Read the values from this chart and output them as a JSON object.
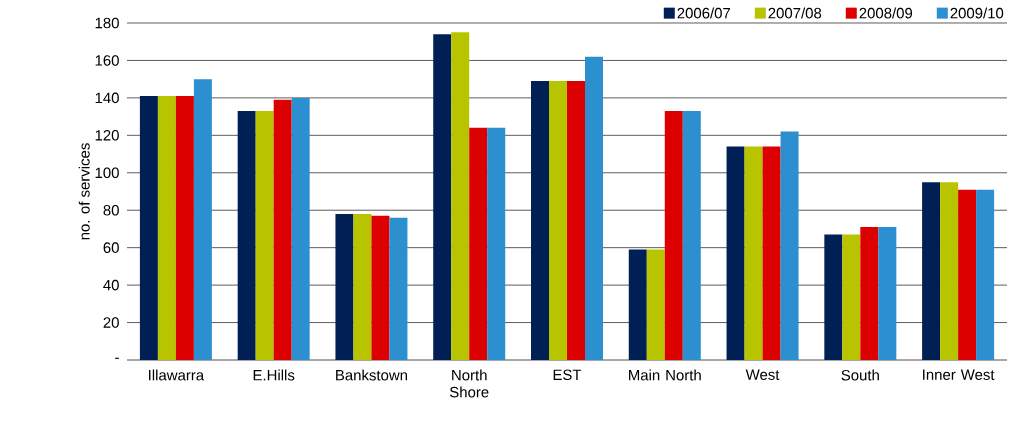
{
  "chart_data": {
    "type": "bar",
    "categories": [
      "Illawarra",
      "E.Hills",
      "Bankstown",
      "North Shore",
      "EST",
      "Main North",
      "West",
      "South",
      "Inner West"
    ],
    "series": [
      {
        "name": "2006/07",
        "color": "#001f54",
        "values": [
          141,
          133,
          78,
          174,
          149,
          59,
          114,
          67,
          95
        ]
      },
      {
        "name": "2007/08",
        "color": "#b8c400",
        "values": [
          141,
          133,
          78,
          175,
          149,
          59,
          114,
          67,
          95
        ]
      },
      {
        "name": "2008/09",
        "color": "#dc0000",
        "values": [
          141,
          139,
          77,
          124,
          149,
          133,
          114,
          71,
          91
        ]
      },
      {
        "name": "2009/10",
        "color": "#2b8fd0",
        "values": [
          150,
          140,
          76,
          124,
          162,
          133,
          122,
          71,
          91
        ]
      }
    ],
    "ylabel": "no. of services",
    "ylim": [
      0,
      180
    ],
    "yticks": [
      {
        "value": 0,
        "label": "-"
      },
      20,
      40,
      60,
      80,
      100,
      120,
      140,
      160,
      180
    ],
    "grid": "y",
    "legend": "top right"
  }
}
